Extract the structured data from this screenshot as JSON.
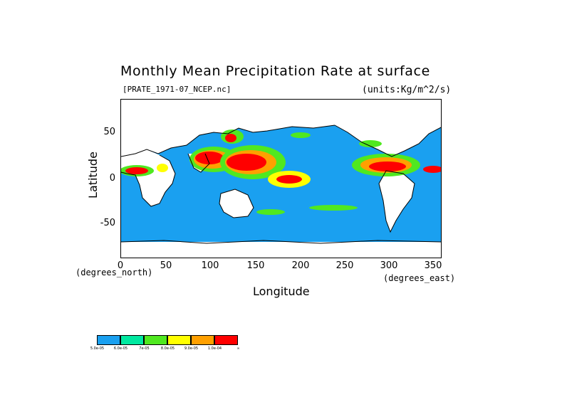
{
  "title": "Monthly Mean Precipitation Rate at surface",
  "file_label": "[PRATE_1971-07_NCEP.nc]",
  "units_label": "(units:Kg/m^2/s)",
  "y_axis": {
    "label": "Latitude",
    "unit_note": "(degrees_north)",
    "ticks": [
      "50",
      "0",
      "-50"
    ]
  },
  "x_axis": {
    "label": "Longitude",
    "unit_note": "(degrees_east)",
    "ticks": [
      "0",
      "50",
      "100",
      "150",
      "200",
      "250",
      "300",
      "350"
    ]
  },
  "legend": {
    "colors": [
      "#1aa0f0",
      "#00e8a0",
      "#50e820",
      "#ffff00",
      "#ffa000",
      "#ff0000"
    ],
    "labels": [
      "5.0e-05",
      "6.0e-05",
      "7e-05",
      "8.0e-05",
      "9.0e-05",
      "1.0e-04",
      "∞"
    ]
  },
  "colors": {
    "ocean": "#1aa0f0",
    "land": "#ffffff",
    "coast": "#000000"
  }
}
